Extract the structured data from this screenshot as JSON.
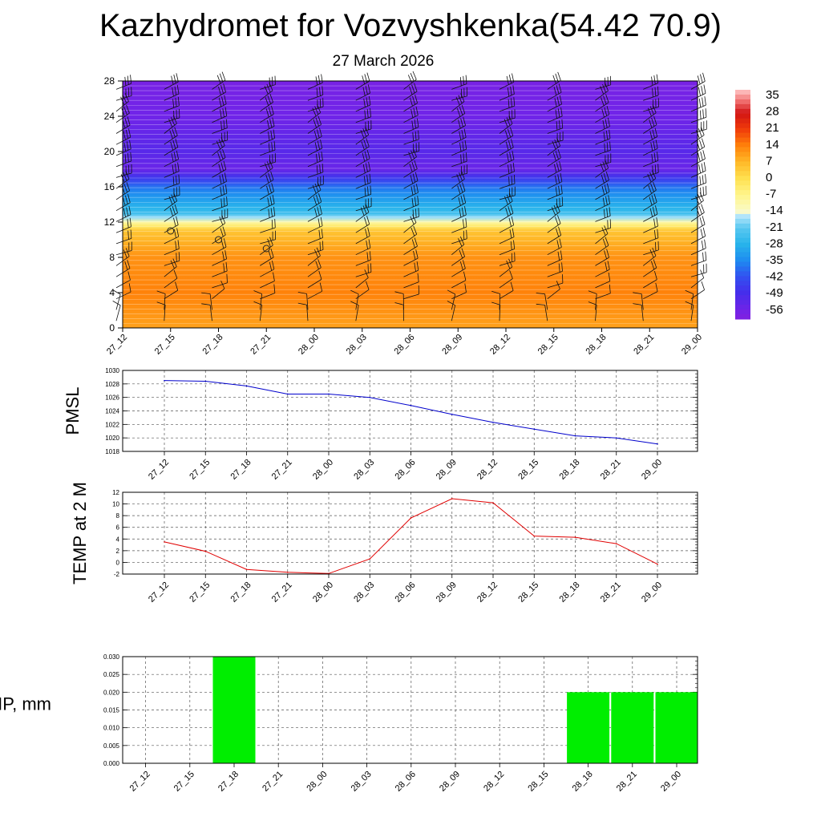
{
  "header": {
    "title": "Kazhydromet for Vozvyshkenka(54.42 70.9)",
    "date": "27 March 2026"
  },
  "chart_data": [
    {
      "type": "heatmap",
      "name": "vertical temperature cross-section with wind barbs",
      "times": [
        "27_12",
        "27_15",
        "27_18",
        "27_21",
        "28_00",
        "28_03",
        "28_06",
        "28_09",
        "28_12",
        "28_15",
        "28_18",
        "28_21",
        "29_00"
      ],
      "ylim": [
        0,
        28
      ],
      "yticks": [
        0,
        4,
        8,
        12,
        16,
        20,
        24,
        28
      ],
      "levels": [
        0,
        4,
        8,
        11,
        12,
        13,
        16,
        18,
        20,
        24,
        28
      ],
      "level_temps": [
        10,
        14,
        12,
        5,
        -10,
        -25,
        -38,
        -55,
        -52,
        -56,
        -58
      ],
      "colorbar": {
        "labels": [
          "35",
          "28",
          "21",
          "14",
          "7",
          "0",
          "-7",
          "-14",
          "-21",
          "-28",
          "-35",
          "-42",
          "-49",
          "-56"
        ],
        "values": [
          35,
          28,
          21,
          14,
          7,
          0,
          -7,
          -14,
          -21,
          -28,
          -35,
          -42,
          -49,
          -56
        ],
        "range": [
          -60,
          38
        ]
      },
      "calm_markers": [
        {
          "time": "27_15",
          "height": 11
        },
        {
          "time": "27_18",
          "height": 10
        },
        {
          "time": "27_21",
          "height": 9
        }
      ]
    },
    {
      "type": "line",
      "ylabel": "PMSL",
      "categories": [
        "27_12",
        "27_15",
        "27_18",
        "27_21",
        "28_00",
        "28_03",
        "28_06",
        "28_09",
        "28_12",
        "28_15",
        "28_18",
        "28_21",
        "29_00"
      ],
      "values": [
        1028.5,
        1028.4,
        1027.7,
        1026.5,
        1026.5,
        1026.0,
        1024.8,
        1023.5,
        1022.3,
        1021.3,
        1020.3,
        1020.0,
        1019.1
      ],
      "ylim": [
        1018,
        1030
      ],
      "yticks": [
        "1018",
        "1020",
        "1022",
        "1024",
        "1026",
        "1028",
        "1030"
      ],
      "color": "#0000cc"
    },
    {
      "type": "line",
      "ylabel": "TEMP at 2 M",
      "categories": [
        "27_12",
        "27_15",
        "27_18",
        "27_21",
        "28_00",
        "28_03",
        "28_06",
        "28_09",
        "28_12",
        "28_15",
        "28_18",
        "28_21",
        "29_00"
      ],
      "values": [
        3.5,
        1.9,
        -1.2,
        -1.7,
        -1.9,
        0.6,
        7.6,
        10.9,
        10.2,
        4.5,
        4.3,
        3.2,
        -0.3
      ],
      "ylim": [
        -2,
        12
      ],
      "yticks": [
        "-2",
        "0",
        "2",
        "4",
        "6",
        "8",
        "10",
        "12"
      ],
      "color": "#e00000"
    },
    {
      "type": "bar",
      "ylabel": "PRECIP, mm",
      "categories": [
        "27_12",
        "27_15",
        "27_18",
        "27_21",
        "28_00",
        "28_03",
        "28_06",
        "28_09",
        "28_12",
        "28_15",
        "28_18",
        "28_21",
        "29_00"
      ],
      "values": [
        0,
        0,
        0.03,
        0,
        0,
        0,
        0,
        0,
        0,
        0,
        0.02,
        0.02,
        0.02
      ],
      "ylim": [
        0,
        0.03
      ],
      "yticks": [
        "0.000",
        "0.005",
        "0.010",
        "0.015",
        "0.020",
        "0.025",
        "0.030"
      ],
      "color": "#00ee00"
    }
  ]
}
